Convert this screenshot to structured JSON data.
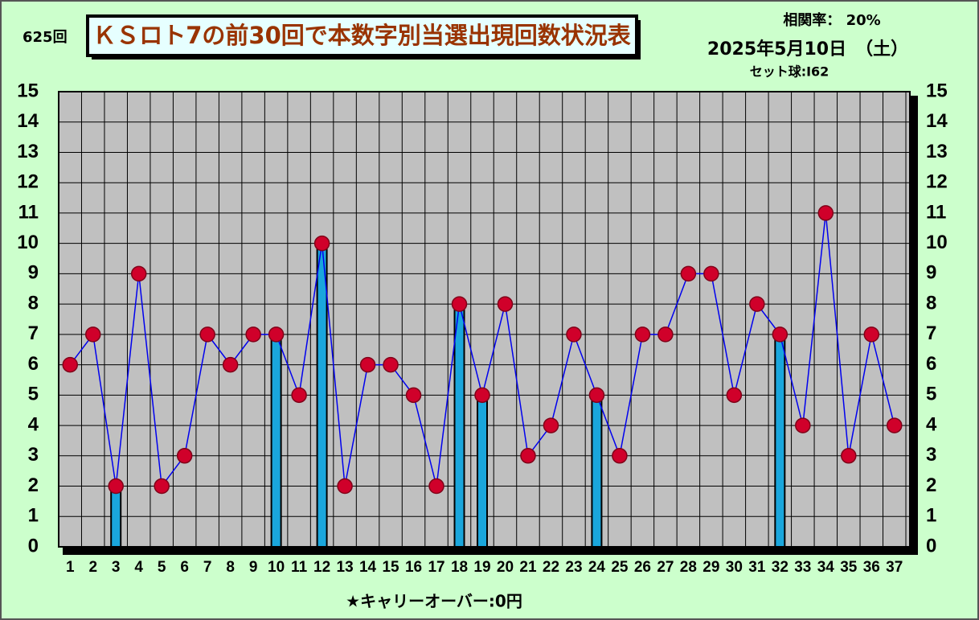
{
  "chart_data": {
    "type": "line",
    "draw_no": "625回",
    "title": "ＫＳロト7の前30回で本数字別当選出現回数状況表",
    "correlation": "相関率：  20%",
    "date": "2025年5月10日　（土）",
    "set_ball": "セット球:I62",
    "footer": "★キャリーオーバー:0円",
    "categories": [
      "1",
      "2",
      "3",
      "4",
      "5",
      "6",
      "7",
      "8",
      "9",
      "10",
      "11",
      "12",
      "13",
      "14",
      "15",
      "16",
      "17",
      "18",
      "19",
      "20",
      "21",
      "22",
      "23",
      "24",
      "25",
      "26",
      "27",
      "28",
      "29",
      "30",
      "31",
      "32",
      "33",
      "34",
      "35",
      "36",
      "37"
    ],
    "values": [
      6,
      7,
      2,
      9,
      2,
      3,
      7,
      6,
      7,
      7,
      5,
      10,
      2,
      6,
      6,
      5,
      2,
      8,
      5,
      8,
      3,
      4,
      7,
      5,
      3,
      7,
      7,
      9,
      9,
      5,
      8,
      7,
      4,
      11,
      3,
      7,
      4
    ],
    "highlighted": [
      false,
      false,
      true,
      false,
      false,
      false,
      false,
      false,
      false,
      true,
      false,
      true,
      false,
      false,
      false,
      false,
      false,
      true,
      true,
      false,
      false,
      false,
      false,
      true,
      false,
      false,
      false,
      false,
      false,
      false,
      false,
      true,
      false,
      false,
      false,
      false,
      false
    ],
    "line_color": "#0000ee",
    "marker_color": "#d0002a",
    "bar_color": "#1aa6dc",
    "ylim": [
      0,
      15
    ],
    "yticks": [
      0,
      1,
      2,
      3,
      4,
      5,
      6,
      7,
      8,
      9,
      10,
      11,
      12,
      13,
      14,
      15
    ],
    "grid": true
  }
}
